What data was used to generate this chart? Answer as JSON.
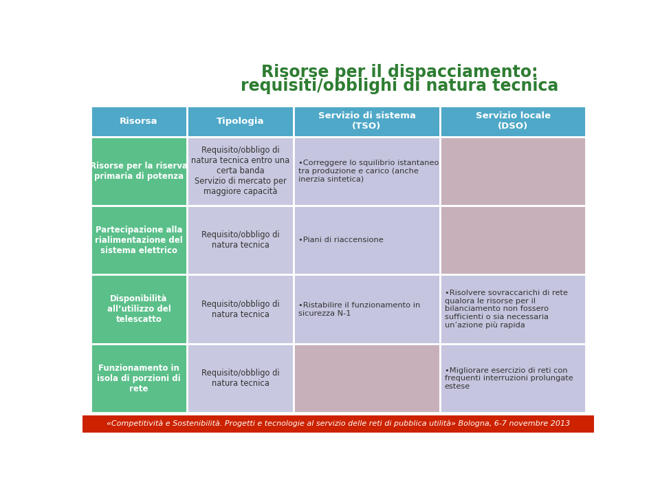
{
  "title_line1": "Risorse per il dispacciamento:",
  "title_line2": "requisiti/obblighi di natura tecnica",
  "title_color": "#2e7d32",
  "header_bg": "#4fa8c8",
  "header_text_color": "white",
  "col_headers": [
    "Risorsa",
    "Tipologia",
    "Servizio di sistema\n(TSO)",
    "Servizio locale\n(DSO)"
  ],
  "row_bg_col0": "#5bbf8a",
  "row_bg_col1": "#c8c8e0",
  "row_bg_tso_empty": "#c8b8c8",
  "row_bg_dso_empty": "#c8b8c8",
  "footer_bg": "#cc2200",
  "footer_text": "«Competitività e Sostenibilità. Progetti e tecnologie al servizio delle reti di pubblica utilità» Bologna, 6-7 novembre 2013",
  "footer_text_color": "white",
  "rows": [
    {
      "col0": "Risorse per la riserva\nprimaria di potenza",
      "col1": "Requisito/obbligo di\nnatura tecnica entro una\ncerta banda\nServizio di mercato per\nmaggiore capacità",
      "col2": "•Correggere lo squilibrio istantaneo\ntra produzione e carico (anche\ninerzia sintetica)",
      "col3": "",
      "col2_bg": "#c5c5df",
      "col3_bg": "#c8b0ba"
    },
    {
      "col0": "Partecipazione alla\nrialimentazione del\nsistema elettrico",
      "col1": "Requisito/obbligo di\nnatura tecnica",
      "col2": "•Piani di riaccensione",
      "col3": "",
      "col2_bg": "#c5c5df",
      "col3_bg": "#c8b0ba"
    },
    {
      "col0": "Disponibilità\nall’utilizzo del\ntelescatto",
      "col1": "Requisito/obbligo di\nnatura tecnica",
      "col2": "•Ristabilire il funzionamento in\nsicurezza N-1",
      "col3": "•Risolvere sovraccarichi di rete\nqualora le risorse per il\nbilanciamento non fossero\nsufficienti o sia necessaria\nun’azione più rapida",
      "col2_bg": "#c5c5df",
      "col3_bg": "#c5c5df"
    },
    {
      "col0": "Funzionamento in\nisola di porzioni di\nrete",
      "col1": "Requisito/obbligo di\nnatura tecnica",
      "col2": "",
      "col3": "•Migliorare esercizio di reti con\nfrequenti interruzioni prolungate\nestese",
      "col2_bg": "#c8b0ba",
      "col3_bg": "#c5c5df"
    }
  ]
}
